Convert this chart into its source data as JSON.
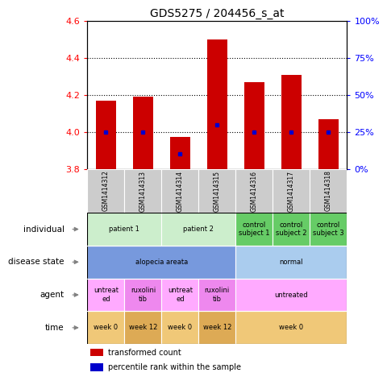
{
  "title": "GDS5275 / 204456_s_at",
  "samples": [
    "GSM1414312",
    "GSM1414313",
    "GSM1414314",
    "GSM1414315",
    "GSM1414316",
    "GSM1414317",
    "GSM1414318"
  ],
  "transformed_count": [
    4.17,
    4.19,
    3.975,
    4.5,
    4.27,
    4.31,
    4.07
  ],
  "percentile_rank": [
    25,
    25,
    10,
    30,
    25,
    25,
    25
  ],
  "ylim_left": [
    3.8,
    4.6
  ],
  "ylim_right": [
    0,
    100
  ],
  "yticks_left": [
    3.8,
    4.0,
    4.2,
    4.4,
    4.6
  ],
  "yticks_right": [
    0,
    25,
    50,
    75,
    100
  ],
  "bar_color": "#cc0000",
  "dot_color": "#0000cc",
  "bar_bottom": 3.8,
  "grid_yticks": [
    4.0,
    4.2,
    4.4
  ],
  "sample_header_color": "#cccccc",
  "individual_cells": [
    {
      "label": "patient 1",
      "cols": [
        0,
        1
      ],
      "color": "#cceecc"
    },
    {
      "label": "patient 2",
      "cols": [
        2,
        3
      ],
      "color": "#cceecc"
    },
    {
      "label": "control\nsubject 1",
      "cols": [
        4
      ],
      "color": "#66cc66"
    },
    {
      "label": "control\nsubject 2",
      "cols": [
        5
      ],
      "color": "#66cc66"
    },
    {
      "label": "control\nsubject 3",
      "cols": [
        6
      ],
      "color": "#66cc66"
    }
  ],
  "disease_cells": [
    {
      "label": "alopecia areata",
      "cols": [
        0,
        1,
        2,
        3
      ],
      "color": "#7799dd"
    },
    {
      "label": "normal",
      "cols": [
        4,
        5,
        6
      ],
      "color": "#aaccee"
    }
  ],
  "agent_cells": [
    {
      "label": "untreat\ned",
      "cols": [
        0
      ],
      "color": "#ffaaff"
    },
    {
      "label": "ruxolini\ntib",
      "cols": [
        1
      ],
      "color": "#ee88ee"
    },
    {
      "label": "untreat\ned",
      "cols": [
        2
      ],
      "color": "#ffaaff"
    },
    {
      "label": "ruxolini\ntib",
      "cols": [
        3
      ],
      "color": "#ee88ee"
    },
    {
      "label": "untreated",
      "cols": [
        4,
        5,
        6
      ],
      "color": "#ffaaff"
    }
  ],
  "time_cells": [
    {
      "label": "week 0",
      "cols": [
        0
      ],
      "color": "#f0c878"
    },
    {
      "label": "week 12",
      "cols": [
        1
      ],
      "color": "#ddaa55"
    },
    {
      "label": "week 0",
      "cols": [
        2
      ],
      "color": "#f0c878"
    },
    {
      "label": "week 12",
      "cols": [
        3
      ],
      "color": "#ddaa55"
    },
    {
      "label": "week 0",
      "cols": [
        4,
        5,
        6
      ],
      "color": "#f0c878"
    }
  ],
  "row_labels": [
    "individual",
    "disease state",
    "agent",
    "time"
  ],
  "legend_items": [
    {
      "color": "#cc0000",
      "label": "transformed count"
    },
    {
      "color": "#0000cc",
      "label": "percentile rank within the sample"
    }
  ]
}
